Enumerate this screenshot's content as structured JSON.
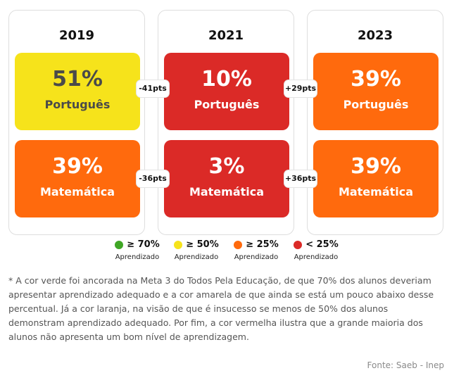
{
  "colors": {
    "green": "#3fa625",
    "yellow": "#f6e31b",
    "orange": "#ff6a0d",
    "red": "#db2a27",
    "text_dark": "#4a4a4a",
    "text_light": "#ffffff"
  },
  "chart_data": {
    "type": "table",
    "years": [
      "2019",
      "2021",
      "2023"
    ],
    "rows": [
      {
        "subject": "Português",
        "values": [
          "51%",
          "10%",
          "39%"
        ],
        "levels": [
          "yellow",
          "red",
          "orange"
        ],
        "changes": [
          "-41pts",
          "+29pts"
        ]
      },
      {
        "subject": "Matemática",
        "values": [
          "39%",
          "3%",
          "39%"
        ],
        "levels": [
          "orange",
          "red",
          "orange"
        ],
        "changes": [
          "-36pts",
          "+36pts"
        ]
      }
    ],
    "legend": [
      {
        "symbol": "≥ 70%",
        "label": "Aprendizado",
        "color": "#3fa625"
      },
      {
        "symbol": "≥ 50%",
        "label": "Aprendizado",
        "color": "#f6e31b"
      },
      {
        "symbol": "≥ 25%",
        "label": "Aprendizado",
        "color": "#ff6a0d"
      },
      {
        "symbol": "< 25%",
        "label": "Aprendizado",
        "color": "#db2a27"
      }
    ]
  },
  "note": "* A cor verde foi ancorada na Meta 3 do Todos Pela Educação, de que 70% dos alunos deveriam apresentar aprendizado adequado e a cor amarela de que ainda se está um pouco abaixo desse percentual. Já a cor laranja, na visão de que é insucesso se menos de 50% dos alunos demonstram aprendizado adequado. Por fim, a cor vermelha ilustra que a grande maioria dos alunos não apresenta um bom nível de aprendizagem.",
  "source": "Fonte: Saeb - Inep"
}
